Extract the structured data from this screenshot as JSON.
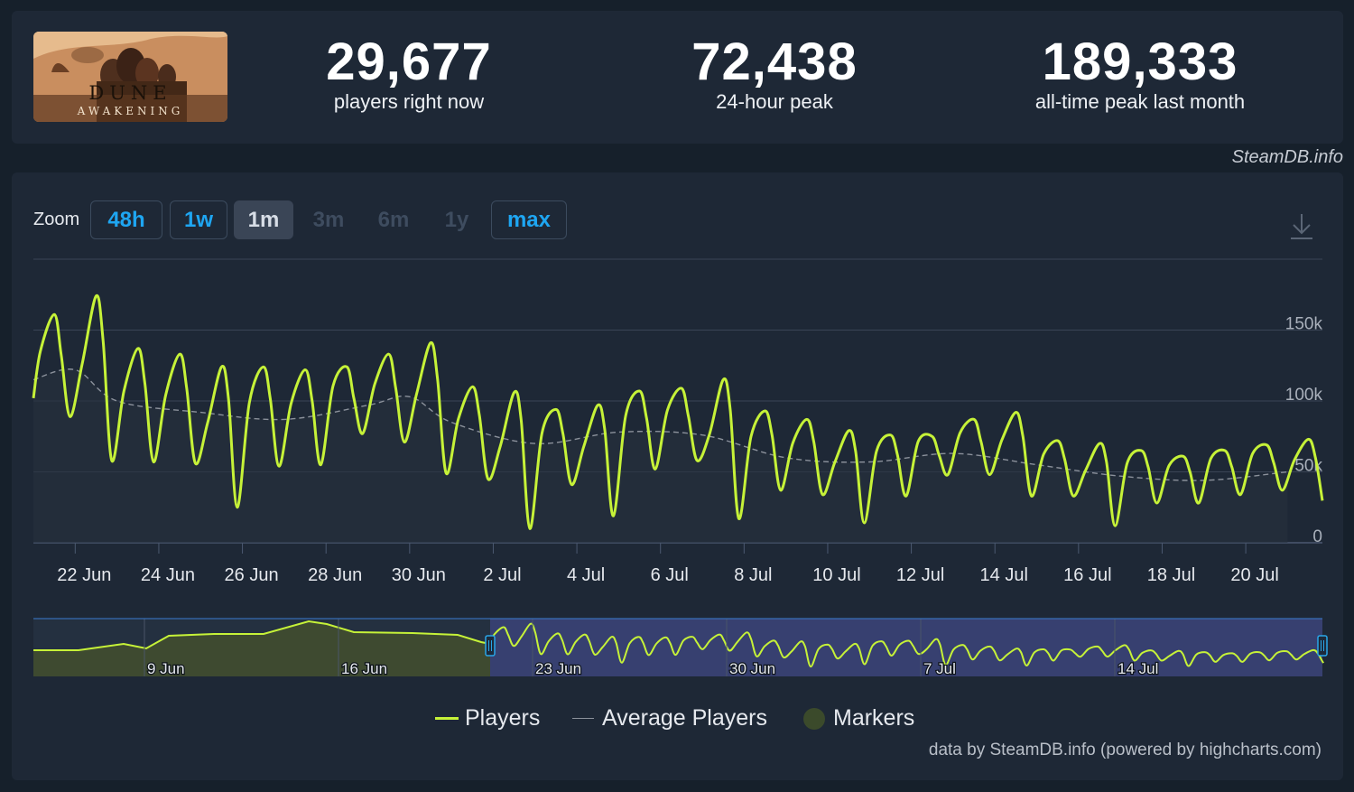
{
  "game": {
    "title_word": "DUNE",
    "subtitle_word": "AWAKENING"
  },
  "stats": [
    {
      "value": "29,677",
      "label": "players right now"
    },
    {
      "value": "72,438",
      "label": "24-hour peak"
    },
    {
      "value": "189,333",
      "label": "all-time peak last month"
    }
  ],
  "credit_top": "SteamDB.info",
  "zoom": {
    "label": "Zoom",
    "buttons": [
      {
        "label": "48h",
        "state": "active"
      },
      {
        "label": "1w",
        "state": "active"
      },
      {
        "label": "1m",
        "state": "selected"
      },
      {
        "label": "3m",
        "state": "disabled"
      },
      {
        "label": "6m",
        "state": "disabled"
      },
      {
        "label": "1y",
        "state": "disabled"
      },
      {
        "label": "max",
        "state": "active"
      }
    ]
  },
  "colors": {
    "players": "#c6f238",
    "average": "#8b919b",
    "grid": "#3a4556",
    "navigator_fill": "#3e4a30",
    "navigator_window": "#3d4580",
    "markers": "#3b4a2b"
  },
  "chart_data": {
    "type": "line",
    "title": "",
    "xlabel": "",
    "ylabel": "",
    "x_range": [
      "2025-06-21",
      "2025-07-21"
    ],
    "ylim": [
      0,
      200000
    ],
    "y_ticks": [
      "0",
      "50k",
      "100k",
      "150k"
    ],
    "x_ticks": [
      "22 Jun",
      "24 Jun",
      "26 Jun",
      "28 Jun",
      "30 Jun",
      "2 Jul",
      "4 Jul",
      "6 Jul",
      "8 Jul",
      "10 Jul",
      "12 Jul",
      "14 Jul",
      "16 Jul",
      "18 Jul",
      "20 Jul"
    ],
    "grid": true,
    "legend_position": "bottom",
    "series": [
      {
        "name": "Players",
        "daily_peaks": [
          [
            "2025-06-21",
            161000
          ],
          [
            "2025-06-22",
            174000
          ],
          [
            "2025-06-23",
            137000
          ],
          [
            "2025-06-24",
            133000
          ],
          [
            "2025-06-25",
            124000
          ],
          [
            "2025-06-26",
            124000
          ],
          [
            "2025-06-27",
            122000
          ],
          [
            "2025-06-28",
            124000
          ],
          [
            "2025-06-29",
            133000
          ],
          [
            "2025-06-30",
            141000
          ],
          [
            "2025-07-01",
            110000
          ],
          [
            "2025-07-02",
            106000
          ],
          [
            "2025-07-03",
            94000
          ],
          [
            "2025-07-04",
            97000
          ],
          [
            "2025-07-05",
            107000
          ],
          [
            "2025-07-06",
            109000
          ],
          [
            "2025-07-07",
            115000
          ],
          [
            "2025-07-08",
            93000
          ],
          [
            "2025-07-09",
            87000
          ],
          [
            "2025-07-10",
            79000
          ],
          [
            "2025-07-11",
            76000
          ],
          [
            "2025-07-12",
            75000
          ],
          [
            "2025-07-13",
            87000
          ],
          [
            "2025-07-14",
            92000
          ],
          [
            "2025-07-15",
            72000
          ],
          [
            "2025-07-16",
            70000
          ],
          [
            "2025-07-17",
            65000
          ],
          [
            "2025-07-18",
            61000
          ],
          [
            "2025-07-19",
            65000
          ],
          [
            "2025-07-20",
            69000
          ],
          [
            "2025-07-21",
            73000
          ]
        ],
        "daily_lows": [
          [
            "2025-06-21",
            89000
          ],
          [
            "2025-06-22",
            58000
          ],
          [
            "2025-06-23",
            57000
          ],
          [
            "2025-06-24",
            56000
          ],
          [
            "2025-06-25",
            25000
          ],
          [
            "2025-06-26",
            54000
          ],
          [
            "2025-06-27",
            55000
          ],
          [
            "2025-06-28",
            77000
          ],
          [
            "2025-06-29",
            71000
          ],
          [
            "2025-06-30",
            49000
          ],
          [
            "2025-07-01",
            45000
          ],
          [
            "2025-07-02",
            10000
          ],
          [
            "2025-07-03",
            41000
          ],
          [
            "2025-07-04",
            19000
          ],
          [
            "2025-07-05",
            52000
          ],
          [
            "2025-07-06",
            58000
          ],
          [
            "2025-07-07",
            17000
          ],
          [
            "2025-07-08",
            37000
          ],
          [
            "2025-07-09",
            34000
          ],
          [
            "2025-07-10",
            14000
          ],
          [
            "2025-07-11",
            33000
          ],
          [
            "2025-07-12",
            48000
          ],
          [
            "2025-07-13",
            48000
          ],
          [
            "2025-07-14",
            33000
          ],
          [
            "2025-07-15",
            33000
          ],
          [
            "2025-07-16",
            12000
          ],
          [
            "2025-07-17",
            28000
          ],
          [
            "2025-07-18",
            28000
          ],
          [
            "2025-07-19",
            34000
          ],
          [
            "2025-07-20",
            37000
          ],
          [
            "2025-07-21",
            24000
          ]
        ],
        "last_value": 29677
      },
      {
        "name": "Average Players",
        "values": [
          [
            "2025-06-21",
            115000
          ],
          [
            "2025-06-22",
            122000
          ],
          [
            "2025-06-23",
            100000
          ],
          [
            "2025-06-25",
            92000
          ],
          [
            "2025-06-27",
            87000
          ],
          [
            "2025-06-29",
            97000
          ],
          [
            "2025-06-30",
            103000
          ],
          [
            "2025-07-01",
            85000
          ],
          [
            "2025-07-03",
            70000
          ],
          [
            "2025-07-05",
            78000
          ],
          [
            "2025-07-07",
            76000
          ],
          [
            "2025-07-09",
            60000
          ],
          [
            "2025-07-11",
            57000
          ],
          [
            "2025-07-13",
            63000
          ],
          [
            "2025-07-15",
            55000
          ],
          [
            "2025-07-17",
            47000
          ],
          [
            "2025-07-19",
            44000
          ],
          [
            "2025-07-21",
            50000
          ]
        ]
      },
      {
        "name": "Markers",
        "values": []
      }
    ],
    "navigator": {
      "x_ticks": [
        "9 Jun",
        "16 Jun",
        "23 Jun",
        "30 Jun",
        "7 Jul",
        "14 Jul"
      ],
      "selected_range": [
        "2025-06-21",
        "2025-07-21"
      ]
    }
  },
  "legend": {
    "players": "Players",
    "average": "Average Players",
    "markers": "Markers"
  },
  "credit_bottom": "data by SteamDB.info (powered by highcharts.com)"
}
